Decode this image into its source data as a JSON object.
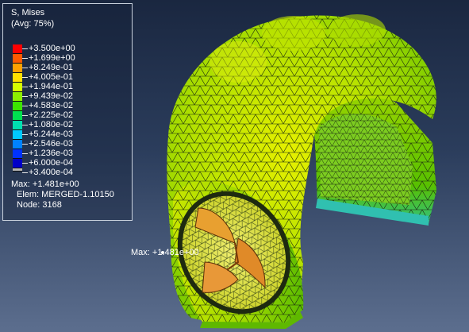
{
  "legend": {
    "variable": "S, Mises",
    "averaging": "(Avg: 75%)",
    "levels": [
      {
        "value": "+3.500e+00",
        "color": "#ff0000"
      },
      {
        "value": "+1.699e+00",
        "color": "#ff5a00"
      },
      {
        "value": "+8.249e-01",
        "color": "#ffa200"
      },
      {
        "value": "+4.005e-01",
        "color": "#ffe000"
      },
      {
        "value": "+1.944e-01",
        "color": "#d6ff00"
      },
      {
        "value": "+9.439e-02",
        "color": "#8cf000"
      },
      {
        "value": "+4.583e-02",
        "color": "#3ce400"
      },
      {
        "value": "+2.225e-02",
        "color": "#00e050"
      },
      {
        "value": "+1.080e-02",
        "color": "#00e0b0"
      },
      {
        "value": "+5.244e-03",
        "color": "#00c8ff"
      },
      {
        "value": "+2.546e-03",
        "color": "#0082ff"
      },
      {
        "value": "+1.236e-03",
        "color": "#0032ff"
      },
      {
        "value": "+6.000e-04",
        "color": "#0000c8"
      },
      {
        "value": "+3.400e-04",
        "color": "#b4b4b4"
      }
    ],
    "max_line": "Max: +1.481e+00",
    "elem_line": "Elem: MERGED-1.10150",
    "node_line": "Node: 3168"
  },
  "viewport": {
    "max_marker_label": "Max: +1.481e+00"
  }
}
